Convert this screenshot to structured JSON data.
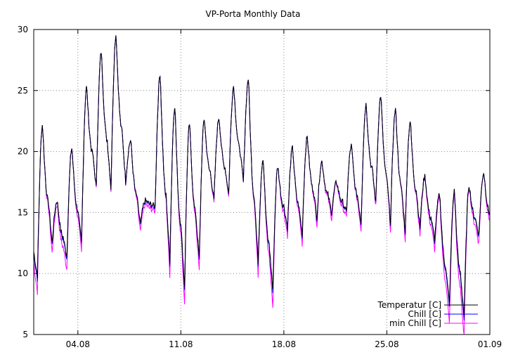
{
  "chart_data": {
    "type": "line",
    "title": "VP-Porta Monthly Data",
    "xlabel": "",
    "ylabel": "",
    "ylim": [
      5,
      30
    ],
    "yticks": [
      5,
      10,
      15,
      20,
      25,
      30
    ],
    "xlim_day": [
      1.0,
      32.0
    ],
    "xticks": [
      {
        "label": "04.08",
        "day": 4
      },
      {
        "label": "11.08",
        "day": 11
      },
      {
        "label": "18.08",
        "day": 18
      },
      {
        "label": "25.08",
        "day": 25
      },
      {
        "label": "01.09",
        "day": 32
      }
    ],
    "grid": true,
    "legend_position": "bottom-right",
    "series": [
      {
        "name": "Temperatur [C]",
        "color": "#000000",
        "chill_offset": 0.0
      },
      {
        "name": "Chill [C]",
        "color": "#0000ff",
        "chill_offset": 0.3
      },
      {
        "name": "min Chill [C]",
        "color": "#ff00ff",
        "chill_offset": 1.0
      }
    ],
    "daily_max_temperature": [
      22.2,
      16.0,
      20.3,
      25.3,
      28.2,
      29.6,
      20.9,
      16.0,
      26.4,
      23.8,
      22.3,
      22.7,
      22.8,
      25.4,
      26.0,
      19.5,
      18.8,
      20.3,
      21.2,
      19.2,
      17.5,
      20.5,
      23.9,
      24.6,
      23.5,
      22.5,
      18.0,
      16.5,
      16.8,
      17.3,
      18.3
    ],
    "daily_min_temperature": [
      9.8,
      12.5,
      11.4,
      12.5,
      17.0,
      17.0,
      17.5,
      14.0,
      15.5,
      11.0,
      9.0,
      11.2,
      16.0,
      16.5,
      17.5,
      11.0,
      8.7,
      13.8,
      13.2,
      14.6,
      15.0,
      15.0,
      14.2,
      15.8,
      14.2,
      13.5,
      13.8,
      12.8,
      7.5,
      6.5,
      13.2
    ]
  }
}
